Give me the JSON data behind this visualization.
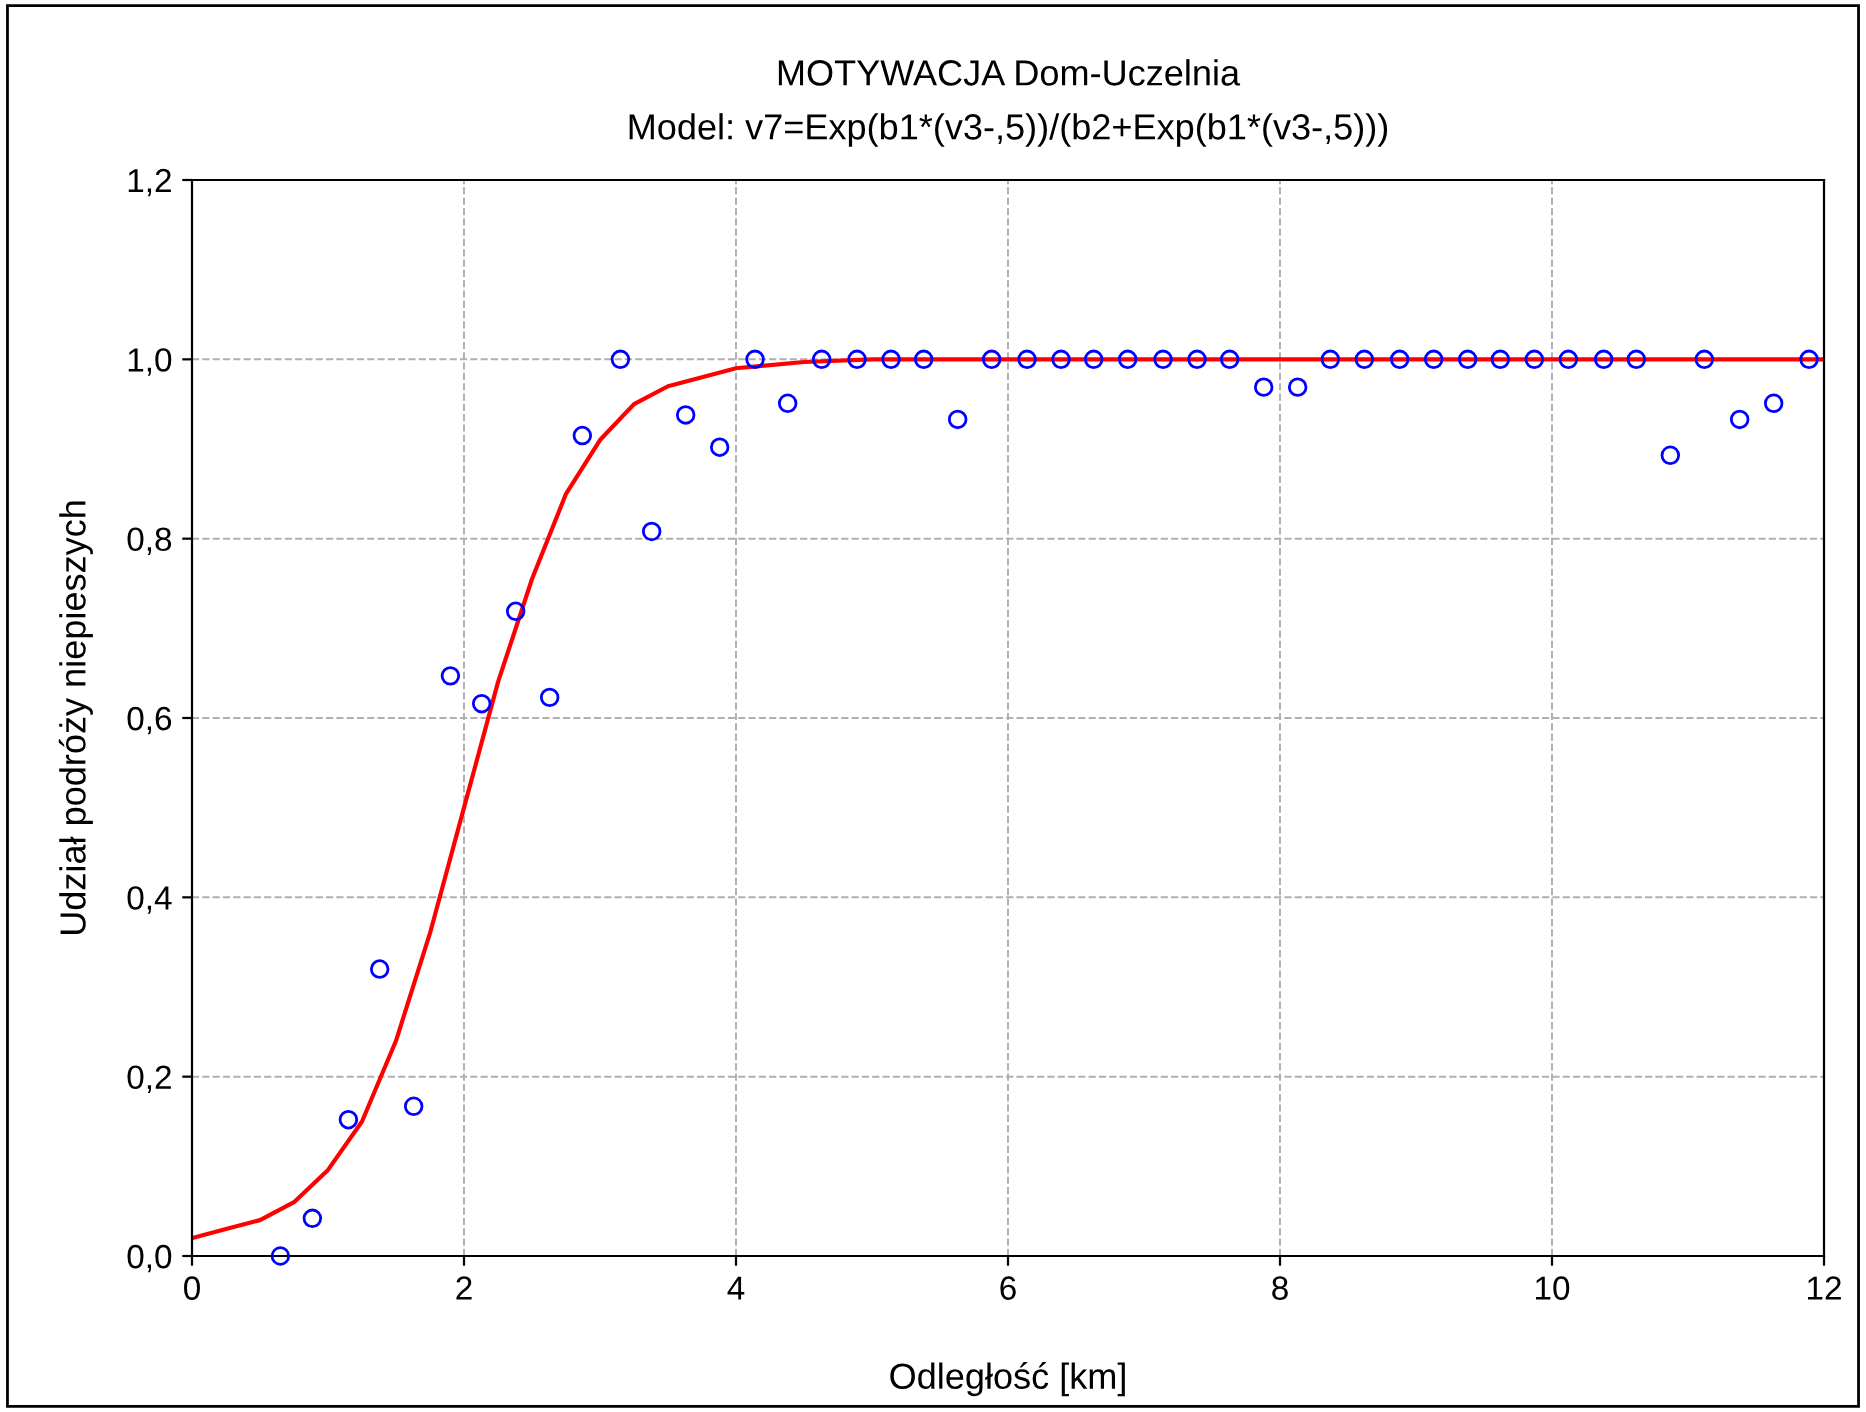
{
  "chart_data": {
    "type": "scatter",
    "title": "MOTYWACJA Dom-Uczelnia",
    "subtitle": "Model: v7=Exp(b1*(v3-,5))/(b2+Exp(b1*(v3-,5)))",
    "xlabel": "Odległość [km]",
    "ylabel": "Udział podróży niepieszych",
    "xlim": [
      0,
      12
    ],
    "ylim": [
      0,
      1.2
    ],
    "xticks": [
      0,
      2,
      4,
      6,
      8,
      10,
      12
    ],
    "yticks": [
      {
        "value": 0,
        "label": "0,0"
      },
      {
        "value": 0.2,
        "label": "0,2"
      },
      {
        "value": 0.4,
        "label": "0,4"
      },
      {
        "value": 0.6,
        "label": "0,6"
      },
      {
        "value": 0.8,
        "label": "0,8"
      },
      {
        "value": 1.0,
        "label": "1,0"
      },
      {
        "value": 1.2,
        "label": "1,2"
      }
    ],
    "grid": true,
    "marker": "circle",
    "series": [
      {
        "color": "#0000ff",
        "x": [
          0.65,
          0.885,
          1.15,
          1.38,
          1.63,
          1.9,
          2.13,
          2.38,
          2.63,
          2.87,
          3.15,
          3.38,
          3.63,
          3.88,
          4.14,
          4.38,
          4.63,
          4.89,
          5.14,
          5.38,
          5.63,
          5.88,
          6.14,
          6.39,
          6.63,
          6.88,
          7.14,
          7.39,
          7.63,
          7.88,
          8.13,
          8.37,
          8.62,
          8.88,
          9.13,
          9.38,
          9.62,
          9.87,
          10.12,
          10.38,
          10.62,
          10.87,
          11.12,
          11.38,
          11.63,
          11.89
        ],
        "values": [
          0.0,
          0.042,
          0.152,
          0.32,
          0.167,
          0.647,
          0.616,
          0.719,
          0.623,
          0.915,
          1.0,
          0.808,
          0.938,
          0.902,
          1.0,
          0.951,
          1.0,
          1.0,
          1.0,
          1.0,
          0.933,
          1.0,
          1.0,
          1.0,
          1.0,
          1.0,
          1.0,
          1.0,
          1.0,
          0.969,
          0.969,
          1.0,
          1.0,
          1.0,
          1.0,
          1.0,
          1.0,
          1.0,
          1.0,
          1.0,
          1.0,
          0.893,
          1.0,
          0.933,
          0.951,
          1.0
        ]
      },
      {
        "type": "line",
        "color": "#ff0000",
        "marker": "none",
        "line_style": "solid",
        "x": [
          0,
          0.25,
          0.5,
          0.75,
          1,
          1.25,
          1.5,
          1.75,
          2,
          2.25,
          2.5,
          2.75,
          3,
          3.25,
          3.5,
          4,
          4.5,
          5,
          6,
          8,
          10,
          12
        ],
        "values": [
          0.02,
          0.03,
          0.04,
          0.06,
          0.096,
          0.15,
          0.24,
          0.36,
          0.5,
          0.64,
          0.755,
          0.85,
          0.91,
          0.95,
          0.97,
          0.99,
          0.997,
          1.0,
          1.0,
          1.0,
          1.0,
          1.0
        ]
      }
    ]
  }
}
